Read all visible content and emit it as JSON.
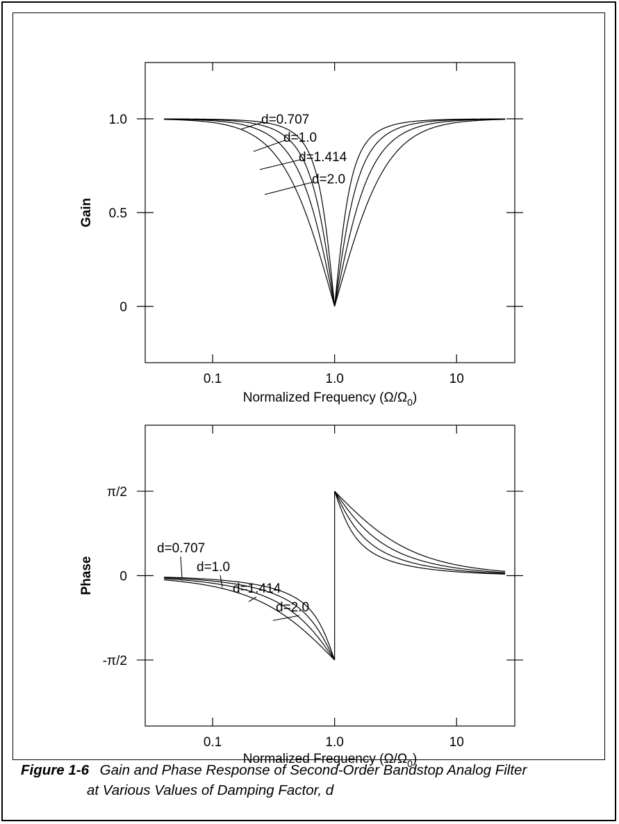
{
  "caption": {
    "label": "Figure 1-6",
    "text_line1": "Gain and Phase Response of Second-Order Bandstop Analog Filter",
    "text_line2": "at Various Values of Damping Factor, d"
  },
  "chart_data": [
    {
      "type": "line",
      "ylabel": "Gain",
      "xlabel": "Normalized Frequency (Ω/Ω0)",
      "xscale": "log",
      "xlim": [
        0.028,
        30
      ],
      "ylim": [
        -0.3,
        1.3
      ],
      "xticks": [
        0.1,
        1.0,
        10
      ],
      "xtick_labels": [
        "0.1",
        "1.0",
        "10"
      ],
      "yticks": [
        0,
        0.5,
        1.0
      ],
      "ytick_labels": [
        "0",
        "0.5",
        "1.0"
      ],
      "grid": false,
      "line_color": "#000000",
      "series": [
        {
          "name": "d=0.707",
          "d": 0.707,
          "x": [
            0.04,
            0.1,
            0.2,
            0.3,
            0.5,
            0.7,
            0.85,
            1.0,
            1.18,
            1.43,
            2.0,
            3.33,
            5.0,
            10,
            25
          ],
          "y": [
            1.0,
            0.9999,
            0.9988,
            0.9941,
            0.9487,
            0.7897,
            0.5135,
            0.0,
            0.5102,
            0.7893,
            0.9487,
            0.9941,
            0.9988,
            0.9999,
            1.0
          ]
        },
        {
          "name": "d=1.0",
          "d": 1.0,
          "x": [
            0.04,
            0.1,
            0.2,
            0.3,
            0.5,
            0.7,
            0.85,
            1.0,
            1.18,
            1.43,
            2.0,
            3.33,
            5.0,
            10,
            25
          ],
          "y": [
            0.998,
            0.99,
            0.96,
            0.917,
            0.832,
            0.679,
            0.403,
            0.0,
            0.399,
            0.679,
            0.832,
            0.917,
            0.96,
            0.99,
            0.998
          ]
        },
        {
          "name": "d=1.414",
          "d": 1.414,
          "x": [
            0.04,
            0.1,
            0.2,
            0.3,
            0.5,
            0.7,
            0.85,
            1.0,
            1.18,
            1.43,
            2.0,
            3.33,
            5.0,
            10,
            25
          ],
          "y": [
            0.996,
            0.98,
            0.923,
            0.85,
            0.728,
            0.551,
            0.297,
            0.0,
            0.294,
            0.551,
            0.728,
            0.85,
            0.923,
            0.98,
            0.996
          ]
        },
        {
          "name": "d=2.0",
          "d": 2.0,
          "x": [
            0.04,
            0.1,
            0.2,
            0.3,
            0.5,
            0.7,
            0.85,
            1.0,
            1.18,
            1.43,
            2.0,
            3.33,
            5.0,
            10,
            25
          ],
          "y": [
            0.992,
            0.96,
            0.858,
            0.741,
            0.6,
            0.436,
            0.22,
            0.0,
            0.218,
            0.436,
            0.6,
            0.741,
            0.858,
            0.96,
            0.992
          ]
        }
      ]
    },
    {
      "type": "line",
      "ylabel": "Phase",
      "xlabel": "Normalized Frequency (Ω/Ω0)",
      "xscale": "log",
      "xlim": [
        0.028,
        30
      ],
      "ylim": [
        -2.8,
        2.8
      ],
      "xticks": [
        0.1,
        1.0,
        10
      ],
      "xtick_labels": [
        "0.1",
        "1.0",
        "10"
      ],
      "yticks": [
        -1.5708,
        0,
        1.5708
      ],
      "ytick_labels": [
        "-π/2",
        "0",
        "π/2"
      ],
      "grid": false,
      "line_color": "#000000",
      "series": [
        {
          "name": "d=0.707",
          "d": 0.707,
          "x": [
            0.04,
            0.1,
            0.2,
            0.3,
            0.5,
            0.7,
            0.85,
            1.0,
            1.18,
            1.43,
            2.0,
            3.33,
            5.0,
            10,
            25
          ],
          "y": [
            -0.028,
            -0.071,
            -0.147,
            -0.233,
            -0.439,
            -0.717,
            -1.002,
            -1.571,
            1.002,
            0.717,
            0.439,
            0.233,
            0.147,
            0.071,
            0.028
          ]
        },
        {
          "name": "d=1.0",
          "d": 1.0,
          "x": [
            0.04,
            0.1,
            0.2,
            0.3,
            0.5,
            0.7,
            0.85,
            1.0,
            1.18,
            1.43,
            2.0,
            3.33,
            5.0,
            10,
            25
          ],
          "y": [
            -0.04,
            -0.1,
            -0.205,
            -0.32,
            -0.588,
            -0.936,
            -1.16,
            -1.571,
            1.16,
            0.936,
            0.588,
            0.32,
            0.205,
            0.1,
            0.04
          ]
        },
        {
          "name": "d=1.414",
          "d": 1.414,
          "x": [
            0.04,
            0.1,
            0.2,
            0.3,
            0.5,
            0.7,
            0.85,
            1.0,
            1.18,
            1.43,
            2.0,
            3.33,
            5.0,
            10,
            25
          ],
          "y": [
            -0.057,
            -0.142,
            -0.286,
            -0.438,
            -0.756,
            -1.081,
            -1.265,
            -1.571,
            1.265,
            1.081,
            0.756,
            0.438,
            0.286,
            0.142,
            0.057
          ]
        },
        {
          "name": "d=2.0",
          "d": 2.0,
          "x": [
            0.04,
            0.1,
            0.2,
            0.3,
            0.5,
            0.7,
            0.85,
            1.0,
            1.18,
            1.43,
            2.0,
            3.33,
            5.0,
            10,
            25
          ],
          "y": [
            -0.08,
            -0.2,
            -0.395,
            -0.582,
            -0.927,
            -1.217,
            -1.359,
            -1.571,
            1.359,
            1.217,
            0.927,
            0.582,
            0.395,
            0.2,
            0.08
          ]
        }
      ]
    }
  ]
}
